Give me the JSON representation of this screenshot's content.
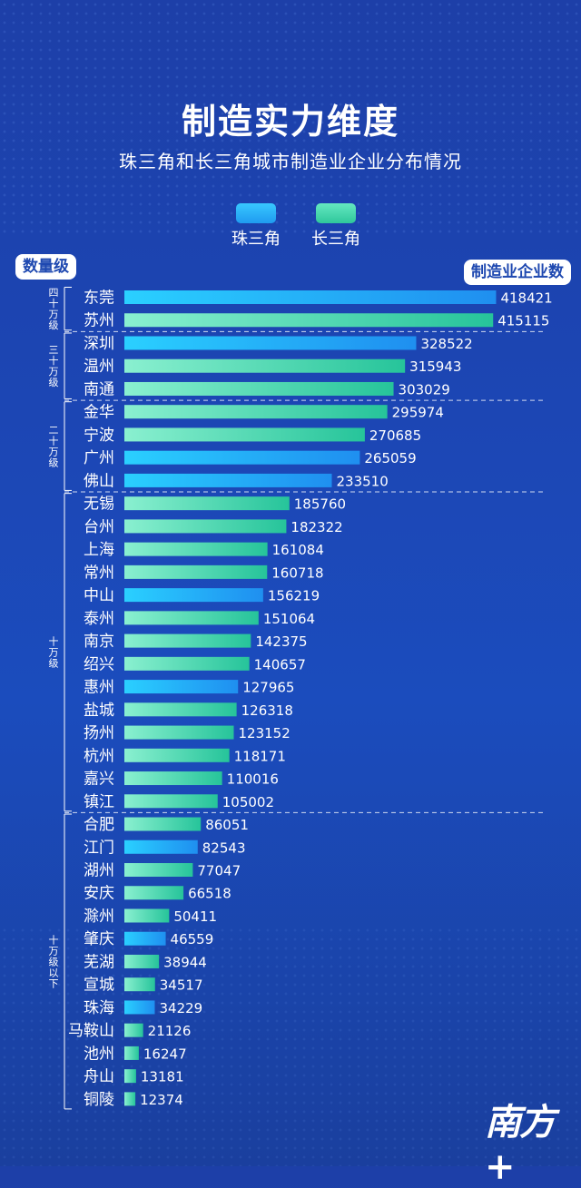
{
  "title": "制造实力维度",
  "subtitle": "珠三角和长三角城市制造业企业分布情况",
  "legend": [
    {
      "label": "珠三角",
      "color": "#27b7f7"
    },
    {
      "label": "长三角",
      "color": "#3fd6a9"
    }
  ],
  "tags": {
    "left": "数量级",
    "right": "制造业企业数"
  },
  "logo": "南方+",
  "chart_data": {
    "type": "bar",
    "orientation": "horizontal",
    "title": "珠三角和长三角城市制造业企业分布情况",
    "xlabel": "制造业企业数",
    "ylabel": "数量级",
    "xlim": [
      0,
      420000
    ],
    "groups": [
      {
        "label": "四十万级",
        "start": 0,
        "end": 1
      },
      {
        "label": "三十万级",
        "start": 2,
        "end": 4
      },
      {
        "label": "二十万级",
        "start": 5,
        "end": 8
      },
      {
        "label": "十万级",
        "start": 9,
        "end": 22
      },
      {
        "label": "十万级以下",
        "start": 23,
        "end": 35
      }
    ],
    "categories": [
      "东莞",
      "苏州",
      "深圳",
      "温州",
      "南通",
      "金华",
      "宁波",
      "广州",
      "佛山",
      "无锡",
      "台州",
      "上海",
      "常州",
      "中山",
      "泰州",
      "南京",
      "绍兴",
      "惠州",
      "盐城",
      "扬州",
      "杭州",
      "嘉兴",
      "镇江",
      "合肥",
      "江门",
      "湖州",
      "安庆",
      "滁州",
      "肇庆",
      "芜湖",
      "宣城",
      "珠海",
      "马鞍山",
      "池州",
      "舟山",
      "铜陵"
    ],
    "values": [
      418421,
      415115,
      328522,
      315943,
      303029,
      295974,
      270685,
      265059,
      233510,
      185760,
      182322,
      161084,
      160718,
      156219,
      151064,
      142375,
      140657,
      127965,
      126318,
      123152,
      118171,
      110016,
      105002,
      86051,
      82543,
      77047,
      66518,
      50411,
      46559,
      38944,
      34517,
      34229,
      21126,
      16247,
      13181,
      12374
    ],
    "region": [
      "珠三角",
      "长三角",
      "珠三角",
      "长三角",
      "长三角",
      "长三角",
      "长三角",
      "珠三角",
      "珠三角",
      "长三角",
      "长三角",
      "长三角",
      "长三角",
      "珠三角",
      "长三角",
      "长三角",
      "长三角",
      "珠三角",
      "长三角",
      "长三角",
      "长三角",
      "长三角",
      "长三角",
      "长三角",
      "珠三角",
      "长三角",
      "长三角",
      "长三角",
      "珠三角",
      "长三角",
      "长三角",
      "珠三角",
      "长三角",
      "长三角",
      "长三角",
      "长三角"
    ]
  }
}
